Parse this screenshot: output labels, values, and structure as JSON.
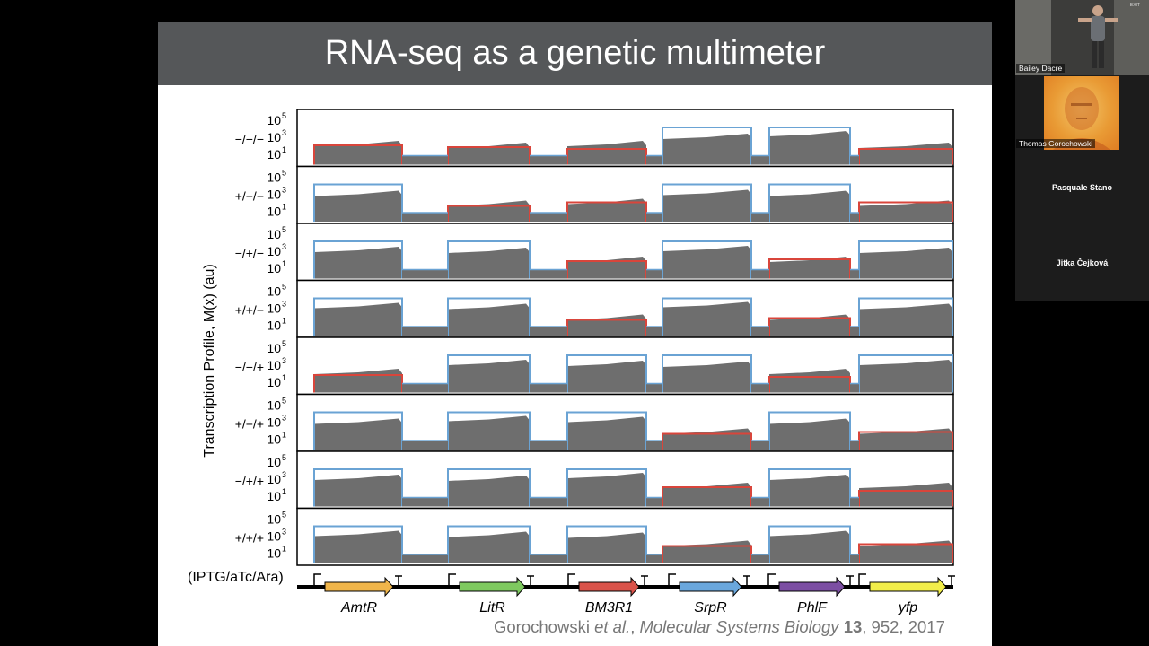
{
  "slide": {
    "title": "RNA-seq as a genetic multimeter",
    "citation": {
      "authors": "Gorochowski ",
      "etal": "et al.",
      "sep": ", ",
      "journal": "Molecular Systems Biology",
      "volume": " 13",
      "pages": ", 952, 2017"
    }
  },
  "figure": {
    "ylabel": "Transcription Profile, M(x) (au)",
    "conditions_header": "(IPTG/aTc/Ara)",
    "rows": [
      "−/−/−",
      "+/−/−",
      "−/+/−",
      "+/+/−",
      "−/−/+",
      "+/−/+",
      "−/+/+",
      "+/+/+"
    ],
    "yticks": [
      {
        "base": "10",
        "exp": "5"
      },
      {
        "base": "10",
        "exp": "3"
      },
      {
        "base": "10",
        "exp": "1"
      }
    ],
    "genes": [
      {
        "name": "AmtR",
        "color": "#f0b54a"
      },
      {
        "name": "LitR",
        "color": "#7ec95f"
      },
      {
        "name": "BM3R1",
        "color": "#d9534a"
      },
      {
        "name": "SrpR",
        "color": "#6aa7dc"
      },
      {
        "name": "PhlF",
        "color": "#7c4ea3"
      },
      {
        "name": "yfp",
        "color": "#f2ee4a"
      }
    ],
    "profile_colors": {
      "fill": "#6e6e6e",
      "high": "#6aa3d4",
      "low": "#d9453b"
    }
  },
  "participants": [
    {
      "name": "Bailey Dacre"
    },
    {
      "name": "Thomas Gorochowski"
    },
    {
      "name": "Pasquale Stano"
    },
    {
      "name": "Jitka Čejková"
    }
  ],
  "video": {
    "exit_sign": "EXIT"
  }
}
